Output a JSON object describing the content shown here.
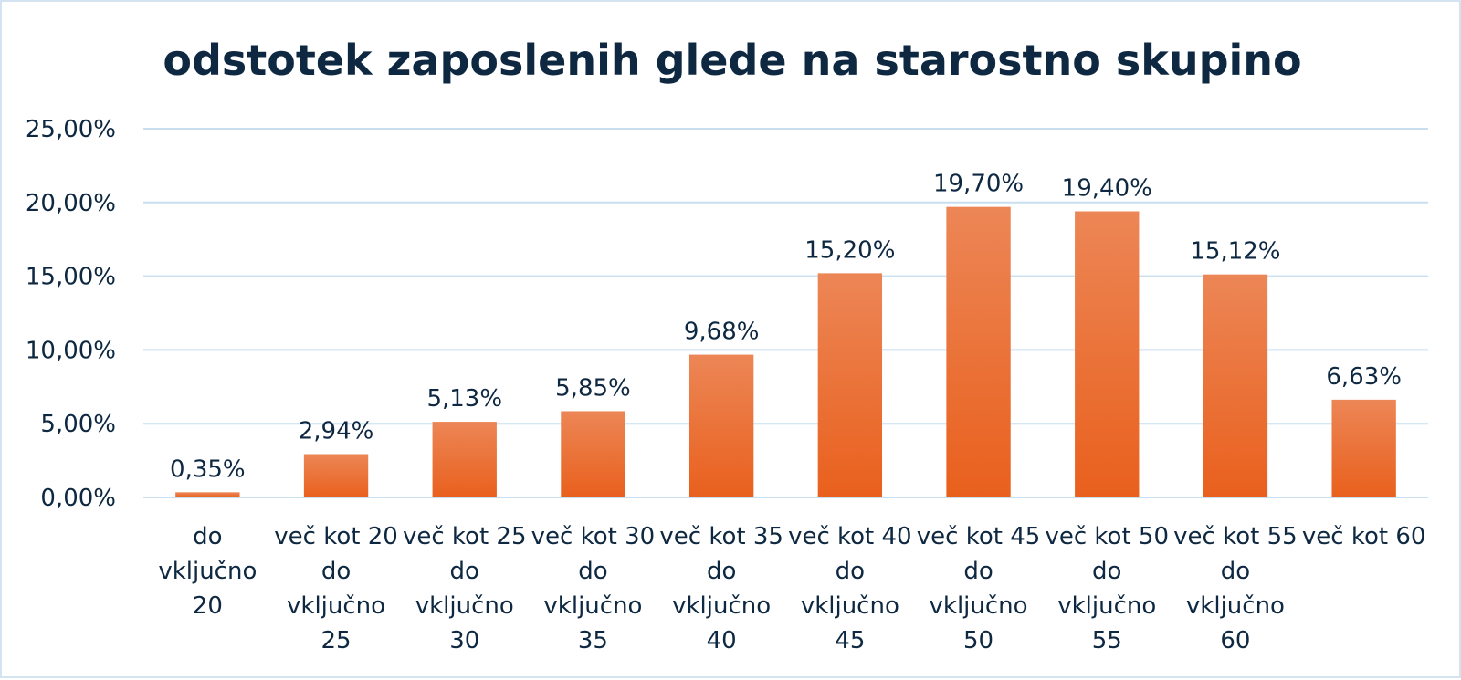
{
  "chart_data": {
    "type": "bar",
    "title": "odstotek zaposlenih glede na starostno skupino",
    "xlabel": "",
    "ylabel": "",
    "ylim": [
      0,
      25
    ],
    "y_ticks": [
      "0,00%",
      "5,00%",
      "10,00%",
      "15,00%",
      "20,00%",
      "25,00%"
    ],
    "grid": true,
    "legend": "none",
    "categories": [
      [
        "do",
        "vključno",
        "20"
      ],
      [
        "več kot 20",
        "do",
        "vključno",
        "25"
      ],
      [
        "več kot 25",
        "do",
        "vključno",
        "30"
      ],
      [
        "več kot 30",
        "do",
        "vključno",
        "35"
      ],
      [
        "več kot 35",
        "do",
        "vključno",
        "40"
      ],
      [
        "več kot 40",
        "do",
        "vključno",
        "45"
      ],
      [
        "več kot 45",
        "do",
        "vključno",
        "50"
      ],
      [
        "več kot 50",
        "do",
        "vključno",
        "55"
      ],
      [
        "več kot 55",
        "do",
        "vključno",
        "60"
      ],
      [
        "več kot 60"
      ]
    ],
    "values": [
      0.35,
      2.94,
      5.13,
      5.85,
      9.68,
      15.2,
      19.7,
      19.4,
      15.12,
      6.63
    ],
    "value_labels": [
      "0,35%",
      "2,94%",
      "5,13%",
      "5,85%",
      "9,68%",
      "15,20%",
      "19,70%",
      "19,40%",
      "15,12%",
      "6,63%"
    ],
    "colors": {
      "bar_top": "#ec8656",
      "bar_bottom": "#e9601d",
      "grid": "#c9dff0",
      "text": "#0e2841",
      "border": "#d3e3f1"
    }
  }
}
